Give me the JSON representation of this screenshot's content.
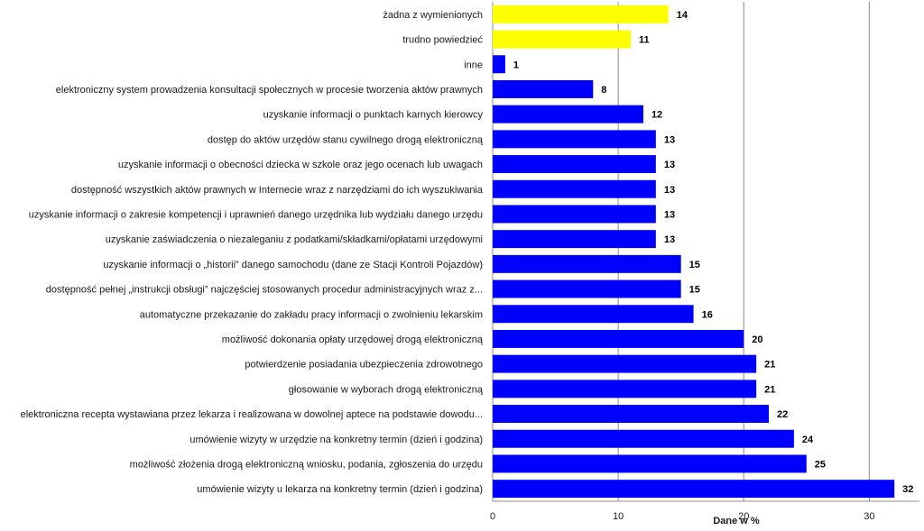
{
  "chart_data": {
    "type": "bar",
    "orientation": "horizontal",
    "categories": [
      "żadna z wymienionych",
      "trudno powiedzieć",
      "inne",
      "elektroniczny system prowadzenia konsultacji społecznych w procesie tworzenia aktów prawnych",
      "uzyskanie informacji o punktach karnych kierowcy",
      "dostęp do aktów urzędów stanu cywilnego drogą elektroniczną",
      "uzyskanie informacji o obecności dziecka w szkole oraz jego ocenach lub uwagach",
      "dostępność wszystkich aktów prawnych w Internecie wraz z narzędziami do ich wyszukiwania",
      "uzyskanie informacji o zakresie kompetencji i uprawnień danego urzędnika lub wydziału danego urzędu",
      "uzyskanie zaświadczenia o niezaleganiu z podatkami/składkami/opłatami urzędowymi",
      "uzyskanie informacji o „historii” danego samochodu (dane ze Stacji Kontroli Pojazdów)",
      "dostępność pełnej „instrukcji obsługi” najczęściej stosowanych procedur administracyjnych wraz z...",
      "automatyczne przekazanie do zakładu pracy informacji o zwolnieniu lekarskim",
      "możliwość dokonania opłaty urzędowej drogą elektroniczną",
      "potwierdzenie posiadania ubezpieczenia zdrowotnego",
      "głosowanie w wyborach drogą elektroniczną",
      "elektroniczna recepta wystawiana przez lekarza i realizowana w dowolnej aptece na podstawie dowodu...",
      "umówienie wizyty w urzędzie na konkretny termin (dzień i godzina)",
      "możliwość złożenia drogą elektroniczną wniosku, podania, zgłoszenia do urzędu",
      "umówienie wizyty u lekarza na konkretny termin (dzień i godzina)"
    ],
    "values": [
      14,
      11,
      1,
      8,
      12,
      13,
      13,
      13,
      13,
      13,
      15,
      15,
      16,
      20,
      21,
      21,
      22,
      24,
      25,
      32
    ],
    "bar_colors": [
      "#ffff00",
      "#ffff00",
      "#0000ff",
      "#0000ff",
      "#0000ff",
      "#0000ff",
      "#0000ff",
      "#0000ff",
      "#0000ff",
      "#0000ff",
      "#0000ff",
      "#0000ff",
      "#0000ff",
      "#0000ff",
      "#0000ff",
      "#0000ff",
      "#0000ff",
      "#0000ff",
      "#0000ff",
      "#0000ff"
    ],
    "xlabel": "Dane w %",
    "xlim": [
      0,
      34
    ],
    "xticks": [
      0,
      10,
      20,
      30
    ],
    "grid": "vertical",
    "legend": "none",
    "data_labels": true
  }
}
